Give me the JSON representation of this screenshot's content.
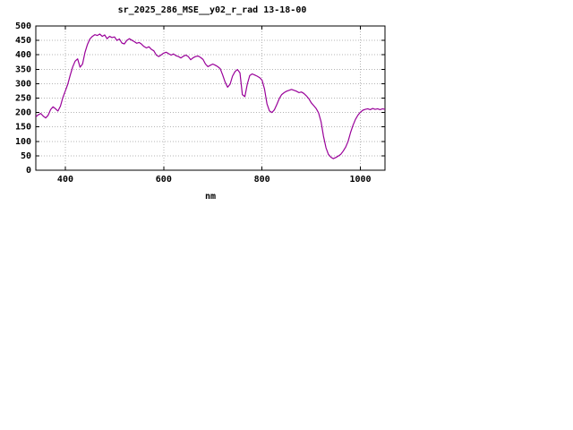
{
  "page": {
    "background": "#ffffff"
  },
  "chart_data": {
    "type": "line",
    "title": "sr_2025_286_MSE__y02_r_rad 13-18-00",
    "xlabel": "nm",
    "ylabel": "",
    "xlim": [
      340,
      1050
    ],
    "ylim": [
      0,
      500
    ],
    "x_ticks": [
      400,
      600,
      800,
      1000
    ],
    "y_ticks": [
      0,
      50,
      100,
      150,
      200,
      250,
      300,
      350,
      400,
      450,
      500
    ],
    "grid": true,
    "legend_position": "none",
    "line_color": "#990099",
    "grid_color": "#b4b4b4",
    "series": [
      {
        "name": "spectral_radiance",
        "x": [
          340,
          345,
          350,
          355,
          360,
          365,
          370,
          375,
          380,
          385,
          390,
          395,
          400,
          405,
          410,
          415,
          420,
          425,
          430,
          435,
          440,
          445,
          450,
          455,
          460,
          465,
          470,
          475,
          480,
          485,
          490,
          495,
          500,
          505,
          510,
          515,
          520,
          525,
          530,
          535,
          540,
          545,
          550,
          555,
          560,
          565,
          570,
          575,
          580,
          585,
          590,
          595,
          600,
          605,
          610,
          615,
          620,
          625,
          630,
          635,
          640,
          645,
          650,
          655,
          660,
          665,
          670,
          675,
          680,
          685,
          690,
          695,
          700,
          705,
          710,
          715,
          720,
          725,
          730,
          735,
          740,
          745,
          750,
          755,
          760,
          765,
          770,
          775,
          780,
          785,
          790,
          795,
          800,
          805,
          810,
          815,
          820,
          825,
          830,
          835,
          840,
          845,
          850,
          855,
          860,
          865,
          870,
          875,
          880,
          885,
          890,
          895,
          900,
          905,
          910,
          915,
          920,
          925,
          930,
          935,
          940,
          945,
          950,
          955,
          960,
          965,
          970,
          975,
          980,
          985,
          990,
          995,
          1000,
          1005,
          1010,
          1015,
          1020,
          1025,
          1030,
          1035,
          1040,
          1045,
          1050
        ],
        "y": [
          185,
          192,
          197,
          188,
          181,
          190,
          210,
          220,
          213,
          205,
          222,
          252,
          275,
          298,
          330,
          358,
          378,
          386,
          357,
          368,
          408,
          436,
          455,
          464,
          470,
          467,
          472,
          464,
          469,
          456,
          464,
          460,
          462,
          450,
          455,
          441,
          438,
          450,
          456,
          451,
          446,
          440,
          443,
          437,
          429,
          424,
          428,
          419,
          414,
          399,
          394,
          400,
          406,
          409,
          404,
          399,
          403,
          397,
          394,
          389,
          395,
          399,
          394,
          383,
          390,
          394,
          396,
          391,
          384,
          368,
          359,
          364,
          368,
          364,
          359,
          352,
          330,
          305,
          288,
          298,
          326,
          342,
          349,
          338,
          262,
          255,
          298,
          328,
          334,
          330,
          326,
          321,
          312,
          282,
          230,
          206,
          200,
          209,
          228,
          248,
          262,
          269,
          274,
          277,
          280,
          277,
          274,
          269,
          271,
          266,
          258,
          248,
          234,
          224,
          214,
          199,
          168,
          118,
          78,
          55,
          45,
          40,
          44,
          49,
          55,
          66,
          80,
          100,
          130,
          156,
          176,
          191,
          201,
          208,
          211,
          213,
          210,
          214,
          211,
          213,
          210,
          213,
          211
        ]
      }
    ]
  }
}
